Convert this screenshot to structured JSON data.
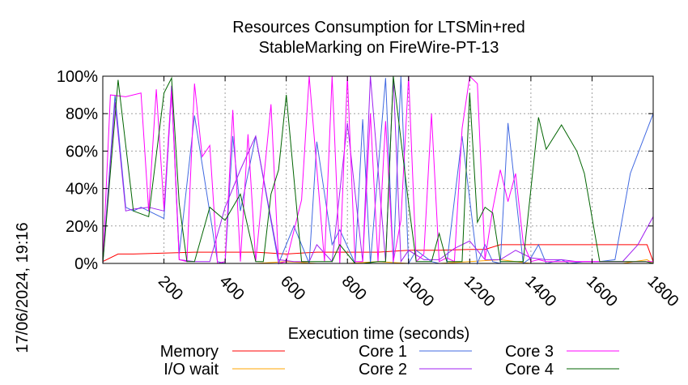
{
  "chart_data": {
    "type": "line",
    "title_line1": "Resources Consumption for LTSMin+red",
    "title_line2": "StableMarking on FireWire-PT-13",
    "xlabel": "Execution time (seconds)",
    "ylabel": "",
    "xlim": [
      0,
      1800
    ],
    "ylim": [
      0,
      100
    ],
    "x_ticks": [
      "200",
      "400",
      "600",
      "800",
      "1000",
      "1200",
      "1400",
      "1600",
      "1800"
    ],
    "y_ticks": [
      "0%",
      "20%",
      "40%",
      "60%",
      "80%",
      "100%"
    ],
    "timestamp": "17/06/2024, 19:16",
    "legend_position": "bottom",
    "grid": true,
    "series": [
      {
        "name": "Memory",
        "color": "#ff0000",
        "x": [
          0,
          50,
          100,
          200,
          300,
          400,
          500,
          600,
          700,
          800,
          900,
          1000,
          1100,
          1200,
          1250,
          1300,
          1400,
          1500,
          1600,
          1700,
          1780,
          1800
        ],
        "y": [
          1,
          5,
          5,
          5.5,
          6,
          6,
          6,
          5,
          6,
          6,
          6,
          7,
          7,
          7.5,
          7.5,
          10,
          10,
          10,
          10,
          10,
          10,
          1
        ]
      },
      {
        "name": "I/O wait",
        "color": "#ffa500",
        "x": [
          0,
          100,
          200,
          300,
          400,
          500,
          600,
          700,
          800,
          900,
          1000,
          1100,
          1200,
          1300,
          1400,
          1500,
          1600,
          1700,
          1780,
          1800
        ],
        "y": [
          0,
          0,
          0,
          0,
          0,
          0,
          1,
          0,
          0,
          1,
          0,
          0,
          1,
          2,
          0,
          0,
          0,
          0,
          2,
          0
        ]
      },
      {
        "name": "Core 1",
        "color": "#4169e1",
        "x": [
          0,
          40,
          75,
          100,
          125,
          150,
          200,
          225,
          250,
          300,
          375,
          400,
          425,
          450,
          500,
          575,
          625,
          675,
          700,
          750,
          775,
          825,
          850,
          875,
          925,
          950,
          975,
          1000,
          1025,
          1075,
          1100,
          1125,
          1175,
          1225,
          1250,
          1275,
          1300,
          1325,
          1375,
          1400,
          1425,
          1450,
          1500,
          1525,
          1575,
          1625,
          1675,
          1725,
          1800
        ],
        "y": [
          0,
          90,
          30,
          28,
          30,
          28,
          24,
          92,
          5,
          79,
          1,
          0,
          68,
          28,
          68,
          0,
          20,
          0,
          65,
          10,
          18,
          0,
          77,
          0,
          99,
          0,
          100,
          0,
          7,
          1,
          0,
          0,
          68,
          0,
          10,
          1,
          0,
          75,
          0,
          3,
          10,
          0,
          2,
          0,
          1,
          1,
          2,
          48,
          80
        ]
      },
      {
        "name": "Core 2",
        "color": "#a020f0",
        "x": [
          0,
          40,
          75,
          100,
          150,
          200,
          225,
          250,
          300,
          350,
          400,
          450,
          500,
          575,
          625,
          675,
          700,
          750,
          800,
          850,
          875,
          925,
          950,
          975,
          1000,
          1050,
          1100,
          1150,
          1200,
          1250,
          1300,
          1350,
          1400,
          1450,
          1500,
          1550,
          1600,
          1650,
          1700,
          1750,
          1800
        ],
        "y": [
          0,
          86,
          28,
          29,
          30,
          28,
          95,
          2,
          1,
          1,
          30,
          50,
          68,
          2,
          1,
          1,
          10,
          1,
          75,
          1,
          100,
          1,
          100,
          1,
          7,
          2,
          2,
          8,
          12,
          2,
          2,
          7,
          3,
          2,
          2,
          1,
          1,
          1,
          1,
          10,
          25
        ]
      },
      {
        "name": "Core 3",
        "color": "#ff00ff",
        "x": [
          0,
          25,
          75,
          125,
          150,
          175,
          200,
          225,
          250,
          275,
          300,
          325,
          350,
          375,
          400,
          425,
          450,
          475,
          500,
          550,
          575,
          600,
          650,
          675,
          725,
          750,
          775,
          800,
          825,
          850,
          875,
          900,
          925,
          950,
          975,
          1000,
          1025,
          1050,
          1075,
          1100,
          1125,
          1150,
          1175,
          1200,
          1225,
          1250,
          1275,
          1300,
          1325,
          1350,
          1375,
          1400,
          1425,
          1450,
          1475,
          1500,
          1550,
          1600,
          1650,
          1700,
          1750,
          1800
        ],
        "y": [
          0,
          90,
          89,
          91,
          28,
          93,
          29,
          92,
          2,
          1,
          96,
          57,
          63,
          0,
          1,
          82,
          1,
          69,
          1,
          85,
          0,
          1,
          34,
          100,
          1,
          100,
          0,
          100,
          1,
          1,
          80,
          1,
          76,
          1,
          23,
          100,
          1,
          5,
          80,
          1,
          3,
          1,
          72,
          100,
          96,
          2,
          29,
          50,
          33,
          48,
          11,
          1,
          2,
          1,
          1,
          1,
          1,
          1,
          1,
          1,
          1,
          1
        ]
      },
      {
        "name": "Core 4",
        "color": "#006400",
        "x": [
          0,
          50,
          100,
          150,
          200,
          225,
          250,
          275,
          300,
          350,
          400,
          450,
          500,
          525,
          550,
          575,
          600,
          650,
          675,
          725,
          750,
          775,
          825,
          850,
          900,
          925,
          950,
          1000,
          1025,
          1075,
          1100,
          1125,
          1175,
          1200,
          1225,
          1250,
          1275,
          1300,
          1350,
          1375,
          1425,
          1450,
          1500,
          1550,
          1575,
          1625,
          1675,
          1725,
          1775,
          1800
        ],
        "y": [
          0,
          98,
          28,
          25,
          91,
          99,
          32,
          1,
          1,
          30,
          23,
          37,
          1,
          1,
          37,
          50,
          90,
          1,
          1,
          1,
          1,
          10,
          0,
          0,
          1,
          1,
          100,
          32,
          1,
          1,
          16,
          1,
          1,
          91,
          22,
          30,
          27,
          1,
          1,
          1,
          78,
          61,
          74,
          60,
          48,
          1,
          1,
          1,
          1,
          0
        ]
      }
    ]
  }
}
